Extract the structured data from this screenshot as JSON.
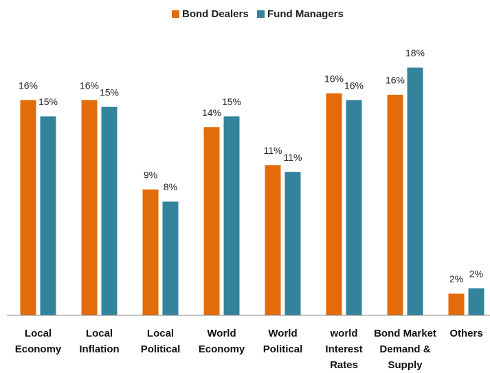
{
  "chart_data": {
    "type": "bar",
    "categories": [
      "Local Economy",
      "Local Inflation",
      "Local Political",
      "World Economy",
      "World Political",
      "world Interest Rates",
      "Bond Market Demand & Supply",
      "Others"
    ],
    "series": [
      {
        "name": "Bond Dealers",
        "color": "#e36c0a",
        "values": [
          15.9,
          15.9,
          9.3,
          13.9,
          11.1,
          16.4,
          16.3,
          1.6
        ],
        "value_labels": [
          "16%",
          "16%",
          "9%",
          "14%",
          "11%",
          "16%",
          "16%",
          "2%"
        ]
      },
      {
        "name": "Fund Managers",
        "color": "#31849b",
        "values": [
          14.7,
          15.4,
          8.4,
          14.7,
          10.6,
          15.9,
          18.3,
          2.0
        ],
        "value_labels": [
          "15%",
          "15%",
          "8%",
          "15%",
          "11%",
          "16%",
          "18%",
          "2%"
        ]
      }
    ],
    "ylim": [
      0,
      20
    ],
    "legend": "top"
  }
}
